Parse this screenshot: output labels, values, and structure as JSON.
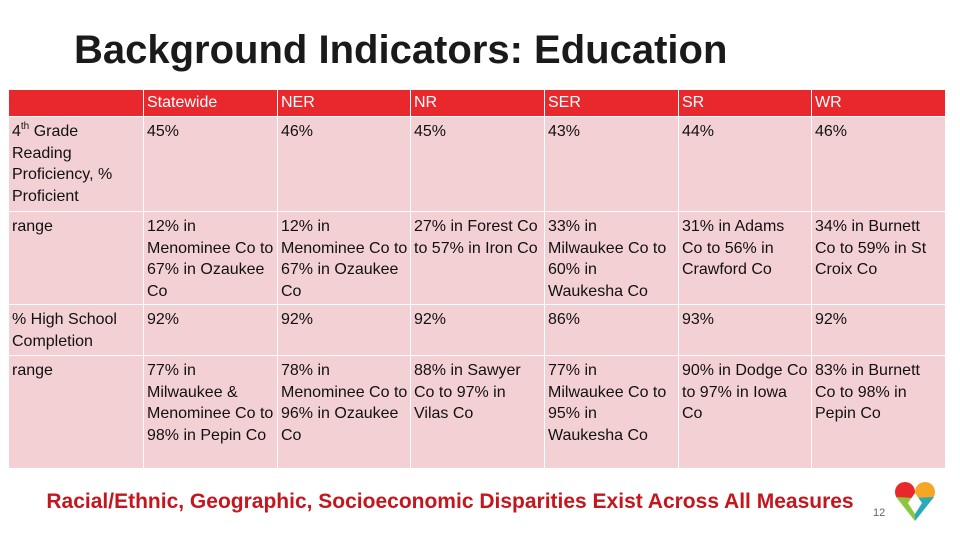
{
  "slide": {
    "title": "Background Indicators: Education",
    "footer": "Racial/Ethnic, Geographic, Socioeconomic Disparities Exist Across All Measures",
    "page_number": "12",
    "logo_icon": "heart-logo-icon"
  },
  "table": {
    "headers": [
      "",
      "Statewide",
      "NER",
      "NR",
      "SER",
      "SR",
      "WR"
    ],
    "rows": [
      {
        "label_prefix": "4",
        "label_sup": "th",
        "label_rest": " Grade Reading Proficiency, % Proficient",
        "cells": [
          "45%",
          "46%",
          "45%",
          "43%",
          "44%",
          "46%"
        ]
      },
      {
        "label": "range",
        "cells": [
          "12% in Menominee Co to 67% in Ozaukee Co",
          "12% in Menominee Co to 67% in Ozaukee Co",
          "27% in Forest Co to 57% in Iron Co",
          "33% in Milwaukee Co to 60% in Waukesha Co",
          "31% in Adams Co to 56% in Crawford Co",
          "34% in Burnett Co to 59% in St Croix Co"
        ]
      },
      {
        "label": "% High School Completion",
        "cells": [
          "92%",
          "92%",
          "92%",
          "86%",
          "93%",
          "92%"
        ]
      },
      {
        "label": "range",
        "cells": [
          "77% in Milwaukee & Menominee Co to 98% in Pepin Co",
          "78% in Menominee Co to 96% in Ozaukee Co",
          "88% in Sawyer Co to 97% in Vilas Co",
          "77% in Milwaukee Co to 95% in Waukesha Co",
          "90% in Dodge Co to 97% in Iowa Co",
          "83% in Burnett Co to 98% in Pepin Co"
        ]
      }
    ]
  },
  "colors": {
    "header_bg": "#e8282c",
    "cell_bg": "#f3d0d3",
    "footer_text": "#c4161c"
  }
}
